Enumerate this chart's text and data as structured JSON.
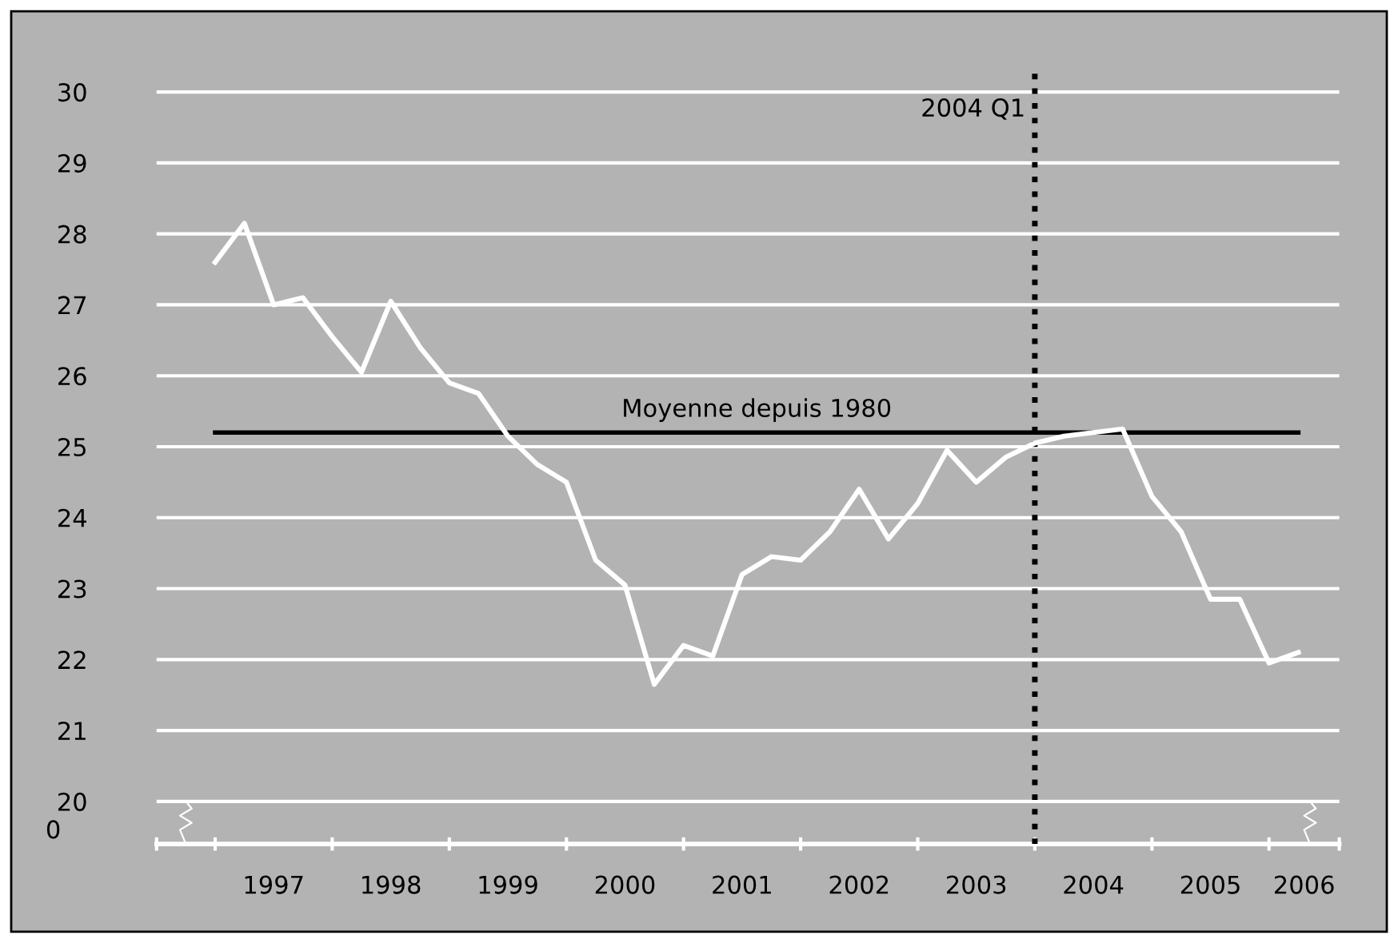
{
  "chart_data": {
    "type": "line",
    "x": [
      1997.0,
      1997.25,
      1997.5,
      1997.75,
      1998.0,
      1998.25,
      1998.5,
      1998.75,
      1999.0,
      1999.25,
      1999.5,
      1999.75,
      2000.0,
      2000.25,
      2000.5,
      2000.75,
      2001.0,
      2001.25,
      2001.5,
      2001.75,
      2002.0,
      2002.25,
      2002.5,
      2002.75,
      2003.0,
      2003.25,
      2003.5,
      2003.75,
      2004.0,
      2004.25,
      2004.5,
      2004.75,
      2005.0,
      2005.25,
      2005.5,
      2005.75,
      2006.0,
      2006.25
    ],
    "series": [
      {
        "color": "#ffffff",
        "values": [
          27.6,
          28.15,
          27.0,
          27.1,
          26.55,
          26.05,
          27.05,
          26.4,
          25.9,
          25.75,
          25.15,
          24.75,
          24.5,
          23.4,
          23.05,
          21.65,
          22.2,
          22.05,
          23.2,
          23.45,
          23.4,
          23.8,
          24.4,
          23.7,
          24.2,
          24.95,
          24.5,
          24.85,
          25.05,
          25.15,
          25.2,
          25.25,
          24.3,
          23.8,
          22.85,
          22.85,
          21.95,
          22.1
        ]
      }
    ],
    "xlim": [
      1996.5,
      2006.6
    ],
    "xticks": [
      {
        "value": 1996.5,
        "label": null
      },
      {
        "value": 1997,
        "label": null
      },
      {
        "value": 1998,
        "label": null
      },
      {
        "value": 1999,
        "label": null
      },
      {
        "value": 2000,
        "label": null
      },
      {
        "value": 2001,
        "label": null
      },
      {
        "value": 2002,
        "label": null
      },
      {
        "value": 2003,
        "label": null
      },
      {
        "value": 2004,
        "label": null
      },
      {
        "value": 2005,
        "label": null
      },
      {
        "value": 2006,
        "label": null
      },
      {
        "value": 2006.6,
        "label": null
      },
      {
        "value": 1997.5,
        "label": "1997"
      },
      {
        "value": 1998.5,
        "label": "1998"
      },
      {
        "value": 1999.5,
        "label": "1999"
      },
      {
        "value": 2000.5,
        "label": "2000"
      },
      {
        "value": 2001.5,
        "label": "2001"
      },
      {
        "value": 2002.5,
        "label": "2002"
      },
      {
        "value": 2003.5,
        "label": "2003"
      },
      {
        "value": 2004.5,
        "label": "2004"
      },
      {
        "value": 2005.5,
        "label": "2005"
      },
      {
        "value": 2006.3,
        "label": "2006"
      }
    ],
    "ylim": [
      19.4,
      30.3
    ],
    "yticks": [
      20,
      21,
      22,
      23,
      24,
      25,
      26,
      27,
      28,
      29,
      30
    ],
    "annotations": [
      "0"
    ],
    "grid": "y",
    "marker": "none",
    "line_style": "solid",
    "ref_lines": [
      {
        "axis": "y",
        "value": 25.2,
        "label": "Moyenne depuis 1980",
        "color": "#000000",
        "line_style": "solid"
      },
      {
        "axis": "x",
        "value": 2004,
        "label": "2004 Q1",
        "color": "#000000",
        "line_style": "dotted"
      }
    ]
  }
}
